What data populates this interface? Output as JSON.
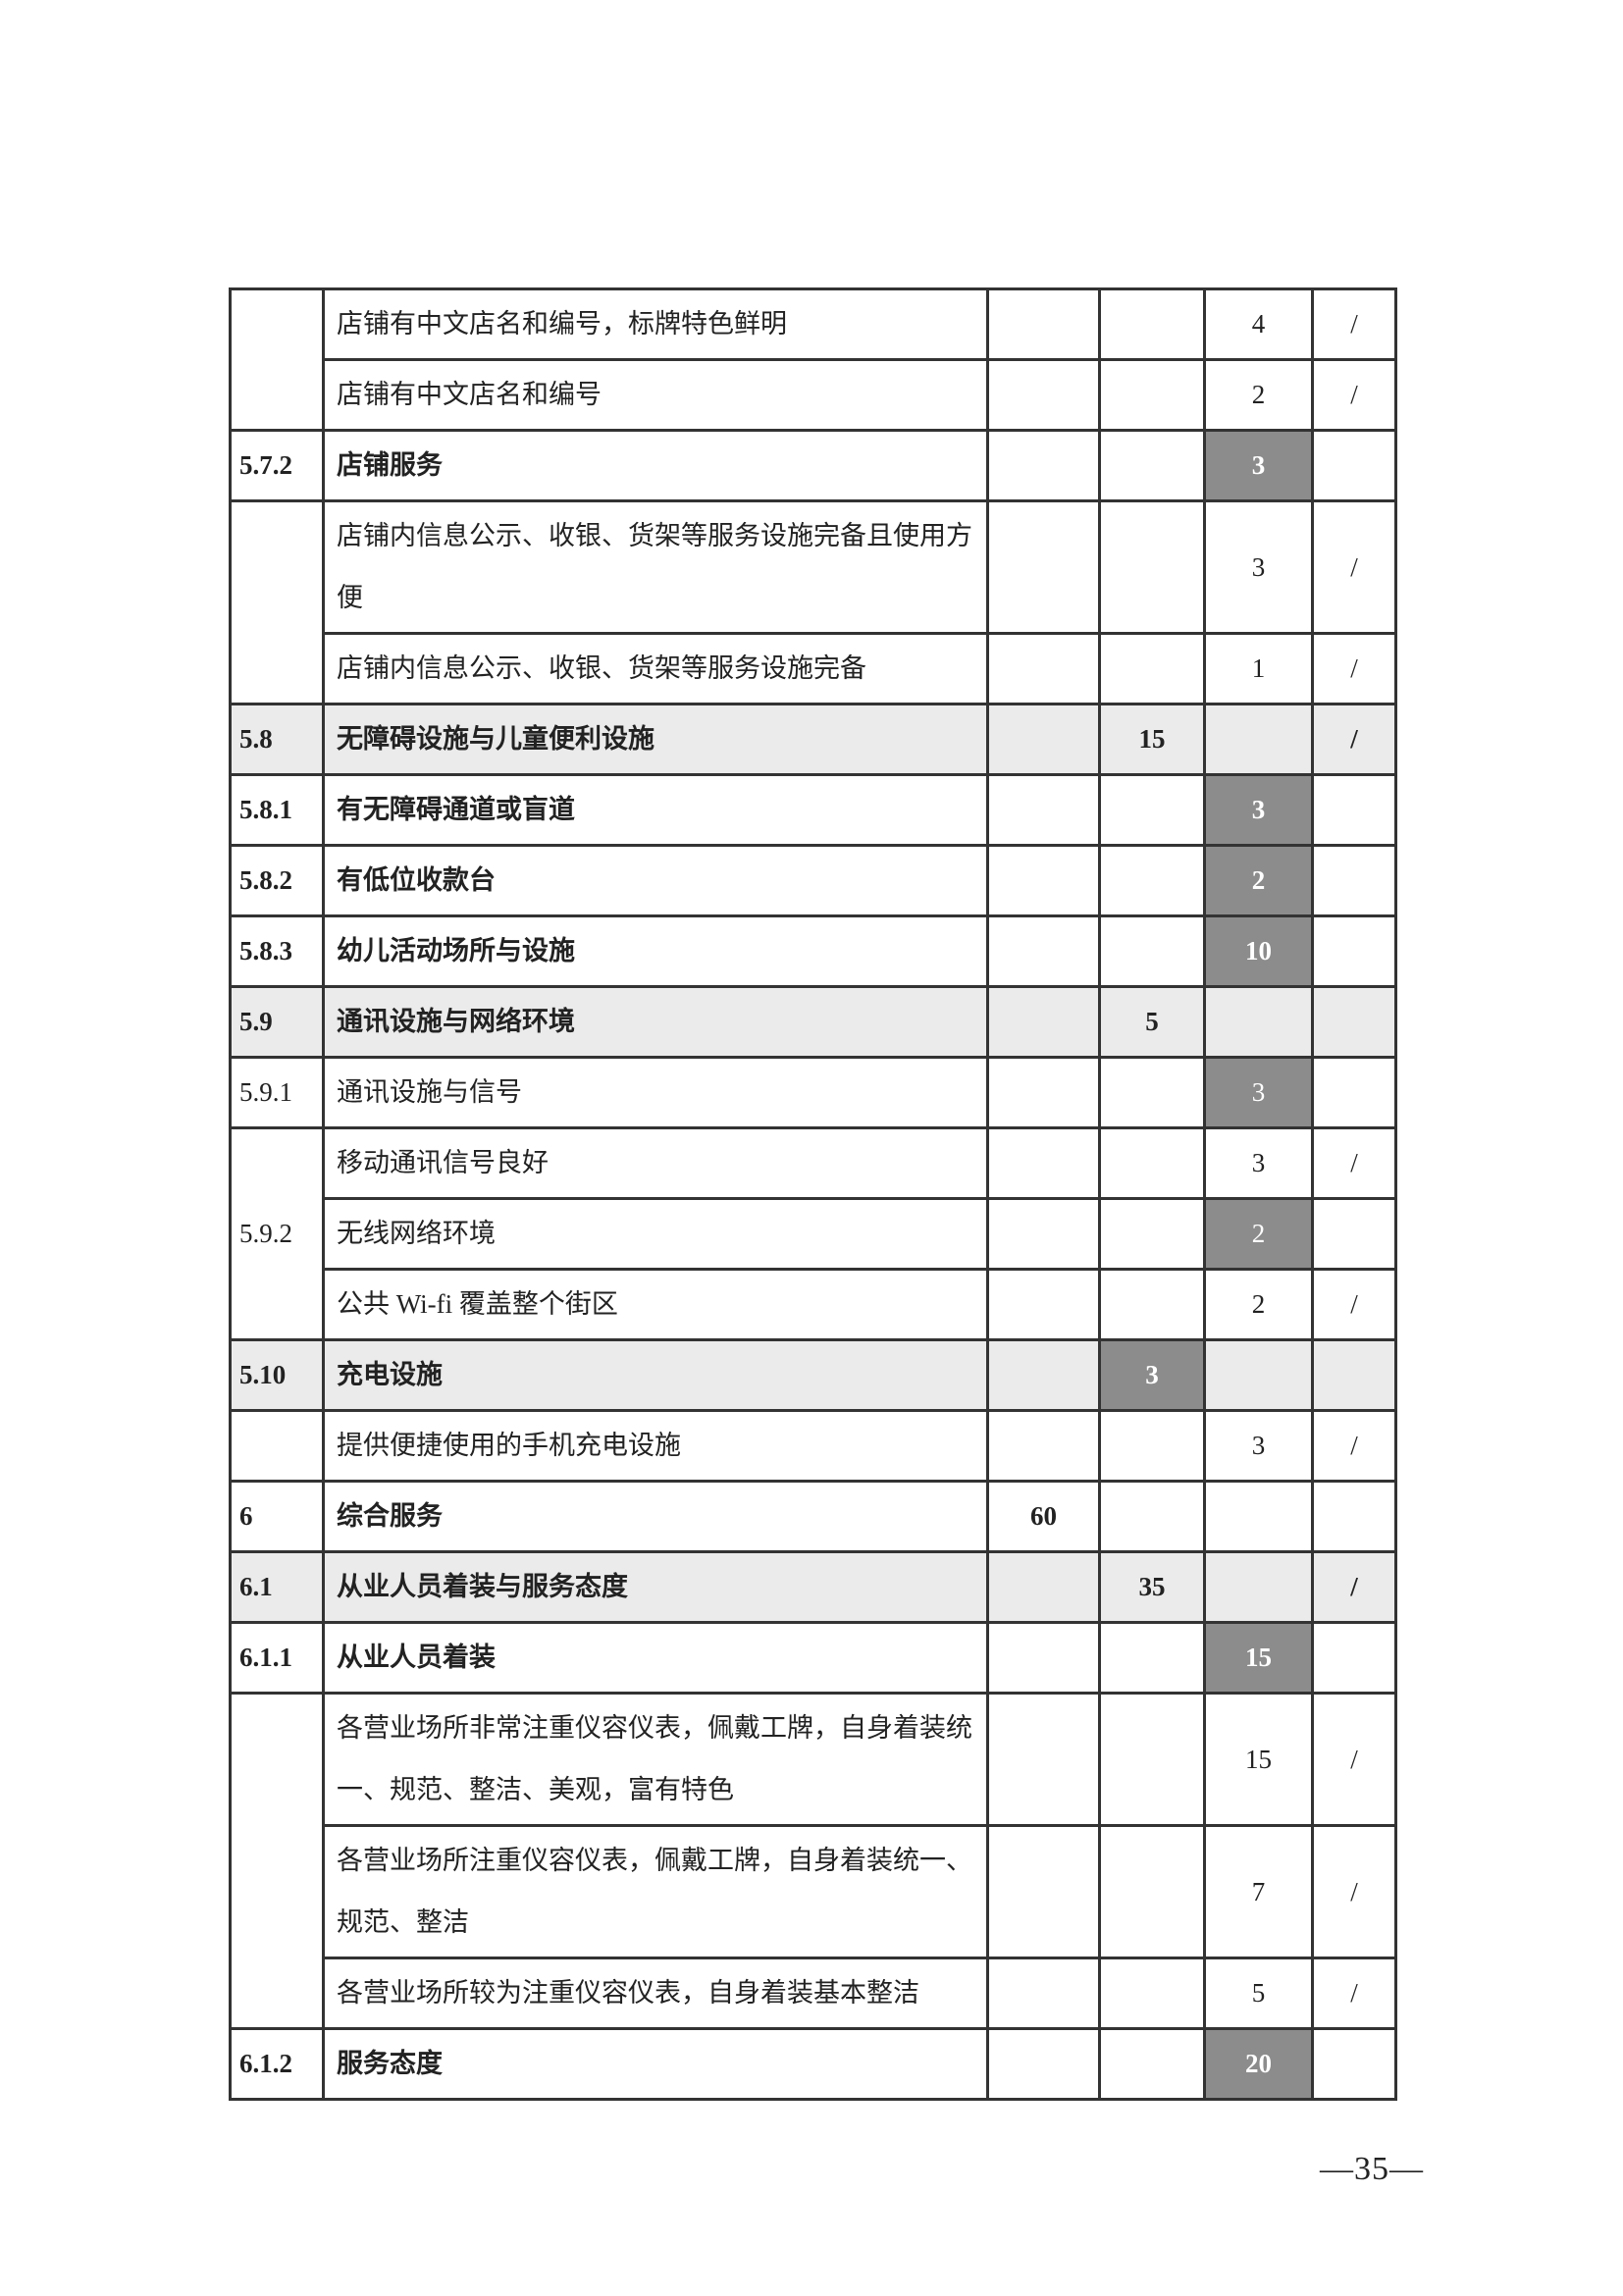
{
  "colors": {
    "dark_cell": "#8c8c8c",
    "light_row": "#ebebeb",
    "border": "#333333"
  },
  "rows": [
    {
      "code": "",
      "item": "店铺有中文店名和编号，标牌特色鲜明",
      "total": "",
      "sub": "",
      "score": "4",
      "note": "/"
    },
    {
      "code": "",
      "item": "店铺有中文店名和编号",
      "total": "",
      "sub": "",
      "score": "2",
      "note": "/"
    },
    {
      "code": "5.7.2",
      "item": "店铺服务",
      "total": "",
      "sub": "",
      "score": "3",
      "note": "",
      "bold": true,
      "dark": "score"
    },
    {
      "code": "",
      "item": "店铺内信息公示、收银、货架等服务设施完备且使用方便",
      "total": "",
      "sub": "",
      "score": "3",
      "note": "/"
    },
    {
      "code": "",
      "item": "店铺内信息公示、收银、货架等服务设施完备",
      "total": "",
      "sub": "",
      "score": "1",
      "note": "/"
    },
    {
      "code": "5.8",
      "item": "无障碍设施与儿童便利设施",
      "total": "",
      "sub": "15",
      "score": "",
      "note": "/",
      "bold": true,
      "shade": "light"
    },
    {
      "code": "5.8.1",
      "item": "有无障碍通道或盲道",
      "total": "",
      "sub": "",
      "score": "3",
      "note": "",
      "bold": true,
      "dark": "score"
    },
    {
      "code": "5.8.2",
      "item": "有低位收款台",
      "total": "",
      "sub": "",
      "score": "2",
      "note": "",
      "bold": true,
      "dark": "score"
    },
    {
      "code": "5.8.3",
      "item": "幼儿活动场所与设施",
      "total": "",
      "sub": "",
      "score": "10",
      "note": "",
      "bold": true,
      "dark": "score"
    },
    {
      "code": "5.9",
      "item": "通讯设施与网络环境",
      "total": "",
      "sub": "5",
      "score": "",
      "note": "",
      "bold": true,
      "shade": "light"
    },
    {
      "code": "5.9.1",
      "item": "通讯设施与信号",
      "total": "",
      "sub": "",
      "score": "3",
      "note": "",
      "dark": "score"
    },
    {
      "code": "",
      "item": "移动通讯信号良好",
      "total": "",
      "sub": "",
      "score": "3",
      "note": "/"
    },
    {
      "code": "5.9.2",
      "item": "无线网络环境",
      "total": "",
      "sub": "",
      "score": "2",
      "note": "",
      "dark": "score"
    },
    {
      "code": "",
      "item": "公共 Wi-fi 覆盖整个街区",
      "total": "",
      "sub": "",
      "score": "2",
      "note": "/"
    },
    {
      "code": "5.10",
      "item": "充电设施",
      "total": "",
      "sub": "3",
      "score": "",
      "note": "",
      "bold": true,
      "shade": "light",
      "dark": "sub"
    },
    {
      "code": "",
      "item": "提供便捷使用的手机充电设施",
      "total": "",
      "sub": "",
      "score": "3",
      "note": "/"
    },
    {
      "code": "6",
      "item": "综合服务",
      "total": "60",
      "sub": "",
      "score": "",
      "note": "",
      "bold": true
    },
    {
      "code": "6.1",
      "item": "从业人员着装与服务态度",
      "total": "",
      "sub": "35",
      "score": "",
      "note": "/",
      "bold": true,
      "shade": "light"
    },
    {
      "code": "6.1.1",
      "item": "从业人员着装",
      "total": "",
      "sub": "",
      "score": "15",
      "note": "",
      "bold": true,
      "dark": "score"
    },
    {
      "code": "",
      "item": "各营业场所非常注重仪容仪表，佩戴工牌，自身着装统一、规范、整洁、美观，富有特色",
      "total": "",
      "sub": "",
      "score": "15",
      "note": "/"
    },
    {
      "code": "",
      "item": "各营业场所注重仪容仪表，佩戴工牌，自身着装统一、规范、整洁",
      "total": "",
      "sub": "",
      "score": "7",
      "note": "/"
    },
    {
      "code": "",
      "item": "各营业场所较为注重仪容仪表，自身着装基本整洁",
      "total": "",
      "sub": "",
      "score": "5",
      "note": "/"
    },
    {
      "code": "6.1.2",
      "item": "服务态度",
      "total": "",
      "sub": "",
      "score": "20",
      "note": "",
      "bold": true,
      "dark": "score"
    }
  ],
  "footer": {
    "page_number": "—35—"
  }
}
